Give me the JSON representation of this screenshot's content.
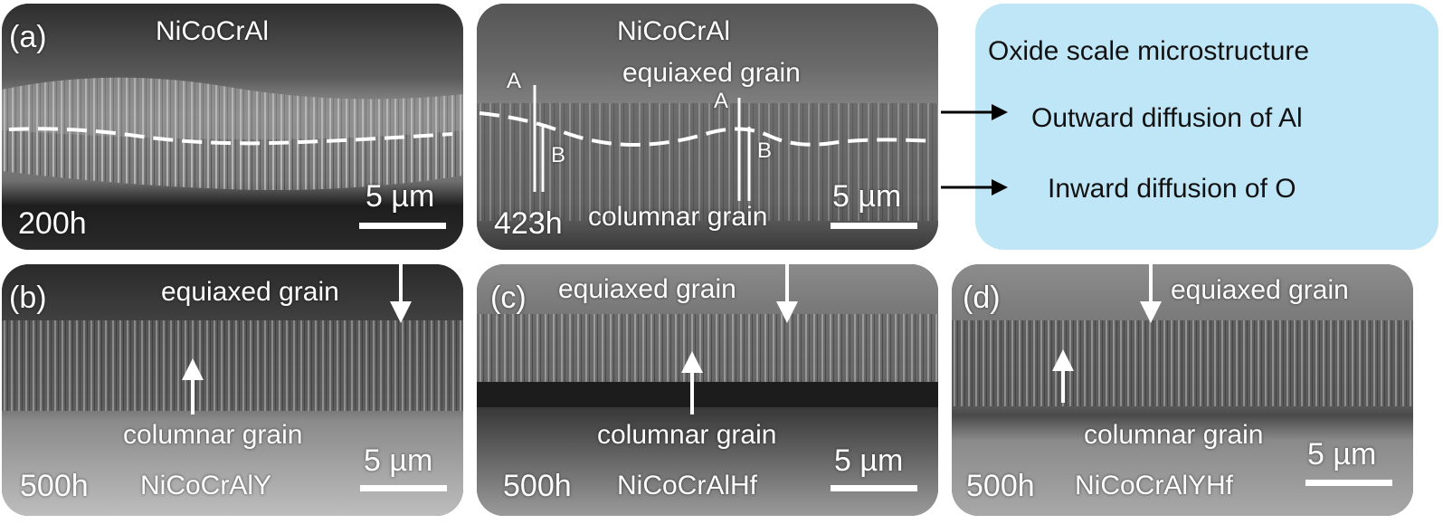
{
  "panels": {
    "a_left": {
      "label": "(a)",
      "alloy": "NiCoCrAl",
      "time": "200h",
      "scale": "5 µm"
    },
    "a_right": {
      "alloy": "NiCoCrAl",
      "equiaxed": "equiaxed grain",
      "columnar": "columnar grain",
      "time": "423h",
      "scale": "5 µm",
      "markers": {
        "A1": "A",
        "B1": "B",
        "A2": "A",
        "B2": "B"
      }
    },
    "b": {
      "label": "(b)",
      "equiaxed": "equiaxed grain",
      "columnar": "columnar grain",
      "time": "500h",
      "alloy": "NiCoCrAlY",
      "scale": "5 µm"
    },
    "c": {
      "label": "(c)",
      "equiaxed": "equiaxed grain",
      "columnar": "columnar grain",
      "time": "500h",
      "alloy": "NiCoCrAlHf",
      "scale": "5 µm"
    },
    "d": {
      "label": "(d)",
      "equiaxed": "equiaxed grain",
      "columnar": "columnar grain",
      "time": "500h",
      "alloy": "NiCoCrAlYHf",
      "scale": "5 µm"
    }
  },
  "info_box": {
    "title": "Oxide scale microstructure",
    "outward": "Outward diffusion of Al",
    "inward": "Inward diffusion of O",
    "color": "#bfe6f6"
  },
  "colors": {
    "annotation": "#ffffff",
    "arrow": "#000000"
  }
}
